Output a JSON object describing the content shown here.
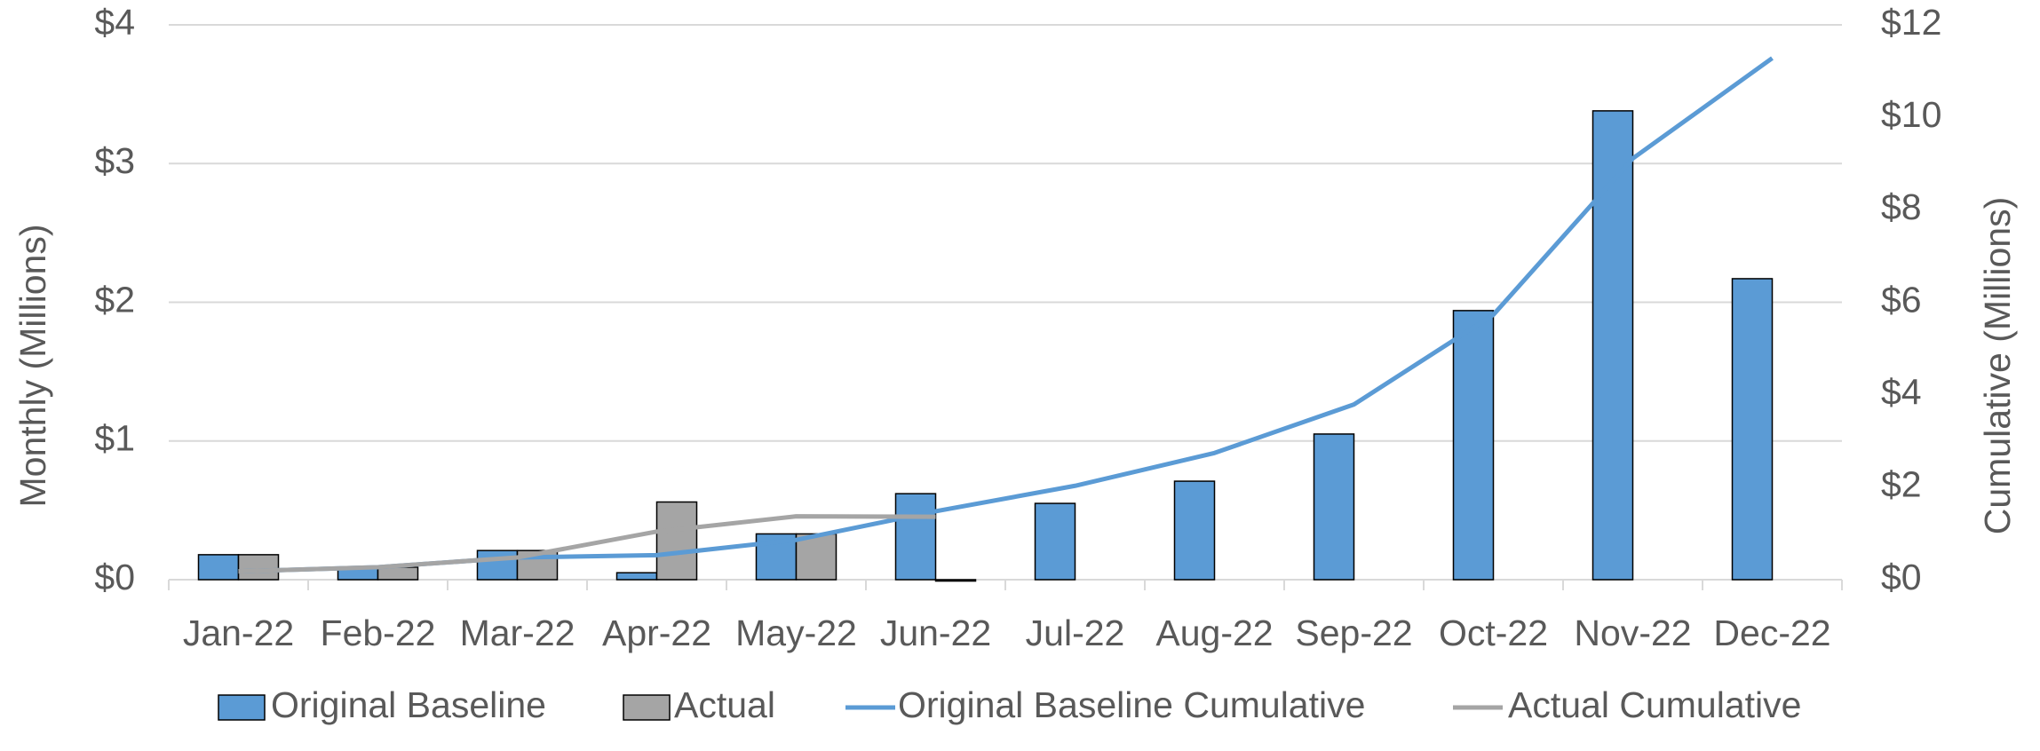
{
  "chart_data": {
    "type": "bar-line",
    "categories": [
      "Jan-22",
      "Feb-22",
      "Mar-22",
      "Apr-22",
      "May-22",
      "Jun-22",
      "Jul-22",
      "Aug-22",
      "Sep-22",
      "Oct-22",
      "Nov-22",
      "Dec-22"
    ],
    "series": [
      {
        "name": "Original Baseline",
        "type": "bar",
        "color": "#5b9bd5",
        "values": [
          0.18,
          0.09,
          0.21,
          0.05,
          0.33,
          0.62,
          0.55,
          0.71,
          1.05,
          1.94,
          3.38,
          2.17
        ]
      },
      {
        "name": "Actual",
        "type": "bar",
        "color": "#a5a5a5",
        "values": [
          0.18,
          0.09,
          0.21,
          0.56,
          0.33,
          -0.01,
          null,
          null,
          null,
          null,
          null,
          null
        ]
      },
      {
        "name": "Original Baseline Cumulative",
        "type": "line",
        "axis": "y2",
        "color": "#5b9bd5",
        "values": [
          0.18,
          0.27,
          0.48,
          0.53,
          0.86,
          1.48,
          2.03,
          2.74,
          3.79,
          5.73,
          9.11,
          11.28
        ]
      },
      {
        "name": "Actual Cumulative",
        "type": "line",
        "axis": "y2",
        "color": "#a5a5a5",
        "values": [
          0.18,
          0.27,
          0.48,
          1.04,
          1.37,
          1.36,
          null,
          null,
          null,
          null,
          null,
          null
        ]
      }
    ],
    "y_label": "Monthly (Millions)",
    "y2_label": "Cumulative (Millions)",
    "ylim": [
      0,
      4
    ],
    "yticks": [
      {
        "value": 0,
        "label": "$0"
      },
      {
        "value": 1,
        "label": "$1"
      },
      {
        "value": 2,
        "label": "$2"
      },
      {
        "value": 3,
        "label": "$3"
      },
      {
        "value": 4,
        "label": "$4"
      }
    ],
    "y2lim": [
      0,
      12
    ],
    "y2ticks": [
      {
        "value": 0,
        "label": "$0"
      },
      {
        "value": 2,
        "label": "$2"
      },
      {
        "value": 4,
        "label": "$4"
      },
      {
        "value": 6,
        "label": "$6"
      },
      {
        "value": 8,
        "label": "$8"
      },
      {
        "value": 10,
        "label": "$10"
      },
      {
        "value": 12,
        "label": "$12"
      }
    ],
    "grid": true,
    "legend": "bottom"
  }
}
